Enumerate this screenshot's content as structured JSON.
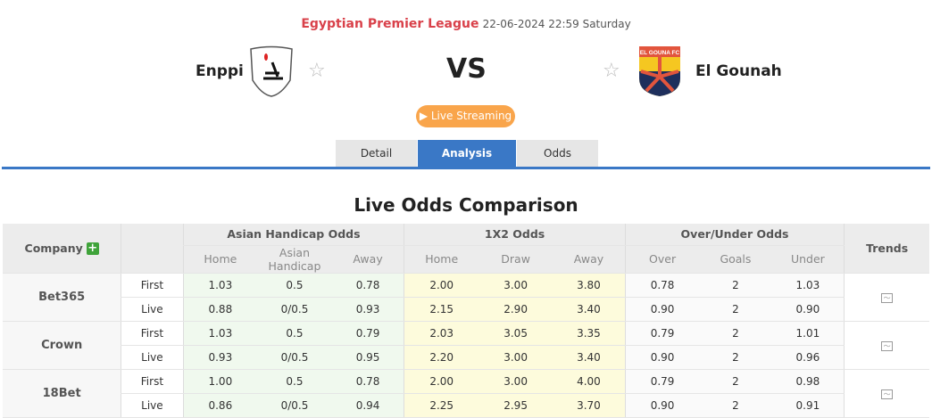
{
  "match": {
    "league": "Egyptian Premier League",
    "datetime": "22-06-2024 22:59 Saturday",
    "home": "Enppi",
    "away": "El Gounah",
    "vs": "VS",
    "away_logo_text": "EL GOUNA FC",
    "live_label": "Live Streaming"
  },
  "tabs": [
    "Detail",
    "Analysis",
    "Odds"
  ],
  "active_tab": "Analysis",
  "section_title": "Live Odds Comparison",
  "table": {
    "company_label": "Company",
    "trends_label": "Trends",
    "groups": [
      "Asian Handicap Odds",
      "1X2 Odds",
      "Over/Under Odds"
    ],
    "subheaders": [
      "Home",
      "Asian Handicap",
      "Away",
      "Home",
      "Draw",
      "Away",
      "Over",
      "Goals",
      "Under"
    ],
    "companies": [
      {
        "name": "Bet365",
        "rows": [
          {
            "type": "First",
            "v": [
              "1.03",
              "0.5",
              "0.78",
              "2.00",
              "3.00",
              "3.80",
              "0.78",
              "2",
              "1.03"
            ]
          },
          {
            "type": "Live",
            "v": [
              "0.88",
              "0/0.5",
              "0.93",
              "2.15",
              "2.90",
              "3.40",
              "0.90",
              "2",
              "0.90"
            ]
          }
        ]
      },
      {
        "name": "Crown",
        "rows": [
          {
            "type": "First",
            "v": [
              "1.03",
              "0.5",
              "0.79",
              "2.03",
              "3.05",
              "3.35",
              "0.79",
              "2",
              "1.01"
            ]
          },
          {
            "type": "Live",
            "v": [
              "0.93",
              "0/0.5",
              "0.95",
              "2.20",
              "3.00",
              "3.40",
              "0.90",
              "2",
              "0.96"
            ]
          }
        ]
      },
      {
        "name": "18Bet",
        "rows": [
          {
            "type": "First",
            "v": [
              "1.00",
              "0.5",
              "0.78",
              "2.00",
              "3.00",
              "4.00",
              "0.79",
              "2",
              "0.98"
            ]
          },
          {
            "type": "Live",
            "v": [
              "0.86",
              "0/0.5",
              "0.94",
              "2.25",
              "2.95",
              "3.70",
              "0.90",
              "2",
              "0.91"
            ]
          }
        ]
      }
    ]
  }
}
